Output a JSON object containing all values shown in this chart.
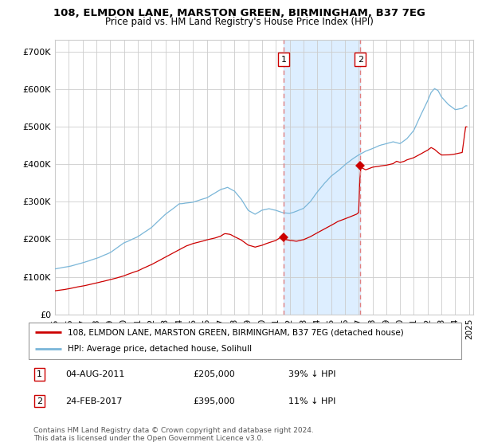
{
  "title": "108, ELMDON LANE, MARSTON GREEN, BIRMINGHAM, B37 7EG",
  "subtitle": "Price paid vs. HM Land Registry's House Price Index (HPI)",
  "legend_line1": "108, ELMDON LANE, MARSTON GREEN, BIRMINGHAM, B37 7EG (detached house)",
  "legend_line2": "HPI: Average price, detached house, Solihull",
  "annotation1_label": "1",
  "annotation1_date": "04-AUG-2011",
  "annotation1_price": "£205,000",
  "annotation1_hpi": "39% ↓ HPI",
  "annotation1_year": 2011.58,
  "annotation1_value": 205000,
  "annotation2_label": "2",
  "annotation2_date": "24-FEB-2017",
  "annotation2_price": "£395,000",
  "annotation2_hpi": "11% ↓ HPI",
  "annotation2_year": 2017.12,
  "annotation2_value": 395000,
  "shade_start": 2011.58,
  "shade_end": 2017.12,
  "hpi_color": "#7ab6d8",
  "price_color": "#cc0000",
  "shade_color": "#ddeeff",
  "grid_color": "#cccccc",
  "background_color": "#ffffff",
  "ylim": [
    0,
    730000
  ],
  "xlim_start": 1995.0,
  "xlim_end": 2025.3,
  "yticks": [
    0,
    100000,
    200000,
    300000,
    400000,
    500000,
    600000,
    700000
  ],
  "ytick_labels": [
    "£0",
    "£100K",
    "£200K",
    "£300K",
    "£400K",
    "£500K",
    "£600K",
    "£700K"
  ],
  "xtick_years": [
    1995,
    1996,
    1997,
    1998,
    1999,
    2000,
    2001,
    2002,
    2003,
    2004,
    2005,
    2006,
    2007,
    2008,
    2009,
    2010,
    2011,
    2012,
    2013,
    2014,
    2015,
    2016,
    2017,
    2018,
    2019,
    2020,
    2021,
    2022,
    2023,
    2024,
    2025
  ],
  "footer1": "Contains HM Land Registry data © Crown copyright and database right 2024.",
  "footer2": "This data is licensed under the Open Government Licence v3.0."
}
